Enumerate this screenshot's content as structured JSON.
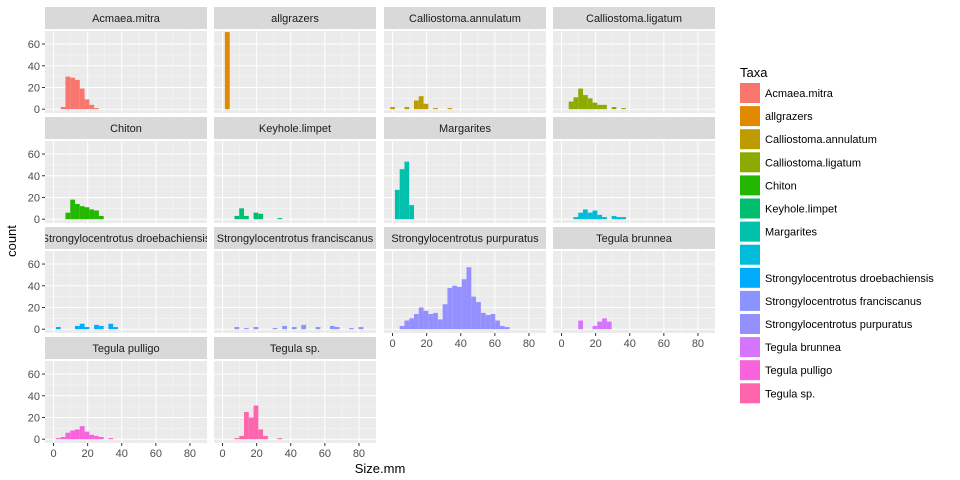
{
  "chart_data": {
    "type": "bar",
    "subtype": "faceted-histogram",
    "xlabel": "Size.mm",
    "ylabel": "count",
    "xlim": [
      0,
      85
    ],
    "ylim": [
      0,
      72
    ],
    "x_ticks": [
      0,
      20,
      40,
      60,
      80
    ],
    "y_ticks": [
      0,
      20,
      40,
      60
    ],
    "grid": true,
    "legend": {
      "title": "Taxa",
      "placement": "right"
    },
    "bin_width": 2.8,
    "panels": [
      {
        "name": "Acmaea.mitra",
        "color": "#F8766D",
        "bars": [
          [
            5.6,
            2
          ],
          [
            8.4,
            30
          ],
          [
            11.2,
            29
          ],
          [
            14,
            27
          ],
          [
            16.8,
            19
          ],
          [
            19.6,
            9
          ],
          [
            22.4,
            4
          ],
          [
            25.2,
            1
          ]
        ]
      },
      {
        "name": "allgrazers",
        "color": "#E18A00",
        "bars": [
          [
            2.8,
            71
          ]
        ]
      },
      {
        "name": "Calliostoma.annulatum",
        "color": "#BE9C00",
        "bars": [
          [
            0,
            2
          ],
          [
            8.4,
            2
          ],
          [
            14,
            8
          ],
          [
            16.8,
            12
          ],
          [
            19.6,
            5
          ],
          [
            25.2,
            1
          ],
          [
            33.6,
            1
          ]
        ]
      },
      {
        "name": "Calliostoma.ligatum",
        "color": "#8CAB00",
        "bars": [
          [
            5.6,
            7
          ],
          [
            8.4,
            11
          ],
          [
            11.2,
            19
          ],
          [
            14,
            13
          ],
          [
            16.8,
            10
          ],
          [
            19.6,
            6
          ],
          [
            22.4,
            4
          ],
          [
            25.2,
            4
          ],
          [
            30.8,
            2
          ],
          [
            36.4,
            1
          ]
        ]
      },
      {
        "name": "Chiton",
        "color": "#24B700",
        "bars": [
          [
            8.4,
            6
          ],
          [
            11.2,
            18
          ],
          [
            14,
            14
          ],
          [
            16.8,
            12
          ],
          [
            19.6,
            11
          ],
          [
            22.4,
            9
          ],
          [
            25.2,
            8
          ],
          [
            28,
            3
          ]
        ]
      },
      {
        "name": "Keyhole.limpet",
        "color": "#00BE70",
        "bars": [
          [
            8.4,
            3
          ],
          [
            11.2,
            10
          ],
          [
            14,
            3
          ],
          [
            19.6,
            6
          ],
          [
            22.4,
            5
          ],
          [
            33.6,
            1
          ]
        ]
      },
      {
        "name": "Margarites",
        "color": "#00C1AB",
        "bars": [
          [
            2.8,
            27
          ],
          [
            5.6,
            46
          ],
          [
            8.4,
            53
          ],
          [
            11.2,
            13
          ]
        ]
      },
      {
        "name": "",
        "color": "#00BBDA",
        "bars": [
          [
            8.4,
            2
          ],
          [
            11.2,
            6
          ],
          [
            14,
            9
          ],
          [
            16.8,
            6
          ],
          [
            19.6,
            8
          ],
          [
            22.4,
            4
          ],
          [
            25.2,
            2
          ],
          [
            30.8,
            3
          ],
          [
            33.6,
            2
          ],
          [
            36.4,
            2
          ]
        ]
      },
      {
        "name": "Strongylocentrotus droebachiensis",
        "color": "#00ACFC",
        "bars": [
          [
            2.8,
            2
          ],
          [
            14,
            3
          ],
          [
            16.8,
            5
          ],
          [
            19.6,
            2
          ],
          [
            25.2,
            4
          ],
          [
            28,
            3
          ],
          [
            33.6,
            5
          ],
          [
            36.4,
            2
          ]
        ]
      },
      {
        "name": "Strongylocentrotus franciscanus",
        "color": "#8B93FF",
        "bars": [
          [
            8.4,
            2
          ],
          [
            14,
            1
          ],
          [
            19.6,
            2
          ],
          [
            30.8,
            1
          ],
          [
            36.4,
            3
          ],
          [
            42,
            2
          ],
          [
            47.6,
            4
          ],
          [
            56,
            2
          ],
          [
            64.4,
            3
          ],
          [
            67.2,
            2
          ],
          [
            75.6,
            1
          ],
          [
            81.2,
            2
          ]
        ]
      },
      {
        "name": "Strongylocentrotus purpuratus",
        "color": "#9590FF",
        "bars": [
          [
            5.6,
            3
          ],
          [
            8.4,
            8
          ],
          [
            11.2,
            10
          ],
          [
            14,
            14
          ],
          [
            16.8,
            20
          ],
          [
            19.6,
            17
          ],
          [
            22.4,
            14
          ],
          [
            25.2,
            15
          ],
          [
            28,
            9
          ],
          [
            30.8,
            23
          ],
          [
            33.6,
            38
          ],
          [
            36.4,
            40
          ],
          [
            39.2,
            39
          ],
          [
            42,
            46
          ],
          [
            44.8,
            57
          ],
          [
            47.6,
            30
          ],
          [
            50.4,
            25
          ],
          [
            53.2,
            15
          ],
          [
            56,
            13
          ],
          [
            58.8,
            14
          ],
          [
            61.6,
            8
          ],
          [
            64.4,
            3
          ],
          [
            67.2,
            2
          ]
        ]
      },
      {
        "name": "Tegula brunnea",
        "color": "#D575FE",
        "bars": [
          [
            11.2,
            8
          ],
          [
            19.6,
            3
          ],
          [
            22.4,
            7
          ],
          [
            25.2,
            10
          ],
          [
            28,
            7
          ]
        ]
      },
      {
        "name": "Tegula pulligo",
        "color": "#F962DD",
        "bars": [
          [
            2.8,
            1
          ],
          [
            5.6,
            2
          ],
          [
            8.4,
            6
          ],
          [
            11.2,
            8
          ],
          [
            14,
            9
          ],
          [
            16.8,
            12
          ],
          [
            19.6,
            7
          ],
          [
            22.4,
            4
          ],
          [
            25.2,
            3
          ],
          [
            28,
            2
          ],
          [
            33.6,
            1
          ]
        ]
      },
      {
        "name": "Tegula sp.",
        "color": "#FF65AC",
        "bars": [
          [
            8.4,
            1
          ],
          [
            11.2,
            3
          ],
          [
            14,
            25
          ],
          [
            16.8,
            20
          ],
          [
            19.6,
            31
          ],
          [
            22.4,
            9
          ],
          [
            25.2,
            3
          ],
          [
            33.6,
            1
          ]
        ]
      }
    ]
  }
}
